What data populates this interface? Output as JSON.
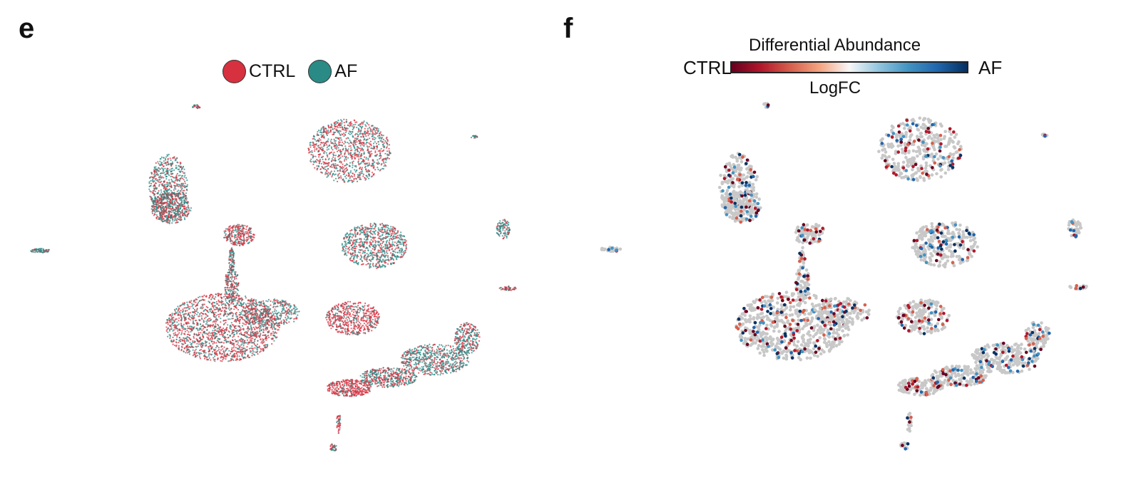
{
  "panels": {
    "e": {
      "letter": "e",
      "legend": [
        {
          "label": "CTRL",
          "color": "#d7303f"
        },
        {
          "label": "AF",
          "color": "#2a8a85"
        }
      ]
    },
    "f": {
      "letter": "f",
      "colorbar": {
        "title": "Differential Abundance",
        "left_label": "CTRL",
        "right_label": "AF",
        "sublabel": "LogFC",
        "colormap": "RdBu",
        "low_color": "#67001f",
        "mid_color": "#f7f7f7",
        "high_color": "#053061"
      },
      "neutral_color": "#c8c8c8"
    }
  },
  "chart_data": [
    {
      "type": "scatter",
      "title": "",
      "xlabel": "",
      "ylabel": "",
      "grid": false,
      "legend_placement": "top-center",
      "series": [
        {
          "name": "CTRL",
          "color": "#d7303f"
        },
        {
          "name": "AF",
          "color": "#2a8a85"
        }
      ]
    },
    {
      "type": "scatter",
      "title": "",
      "xlabel": "",
      "ylabel": "",
      "grid": false,
      "colorbar": "Differential Abundance LogFC",
      "colorbar_placement": "top-center"
    }
  ]
}
